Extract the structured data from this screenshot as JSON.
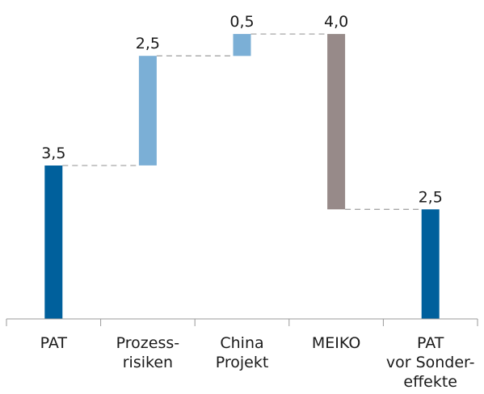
{
  "chart_data": {
    "type": "bar",
    "subtype": "waterfall",
    "title": "",
    "xlabel": "",
    "ylabel": "",
    "ylim": [
      0,
      5
    ],
    "grid": false,
    "legend": "none",
    "categories": [
      [
        "PAT"
      ],
      [
        "Prozess-",
        "risiken"
      ],
      [
        "China",
        "Projekt"
      ],
      [
        "MEIKO"
      ],
      [
        "PAT",
        "vor Sonder-",
        "effekte"
      ]
    ],
    "bars": [
      {
        "label": "3,5",
        "base": 0,
        "top": 3.5,
        "kind": "total"
      },
      {
        "label": "2,5",
        "base": 3.5,
        "top": 6.0,
        "kind": "increase"
      },
      {
        "label": "0,5",
        "base": 6.0,
        "top": 6.5,
        "kind": "increase"
      },
      {
        "label": "4,0",
        "base": 2.5,
        "top": 6.5,
        "kind": "decrease"
      },
      {
        "label": "2,5",
        "base": 0,
        "top": 2.5,
        "kind": "total"
      }
    ],
    "colors": {
      "total": "#00609c",
      "increase": "#7bafd6",
      "decrease": "#978a89"
    }
  }
}
